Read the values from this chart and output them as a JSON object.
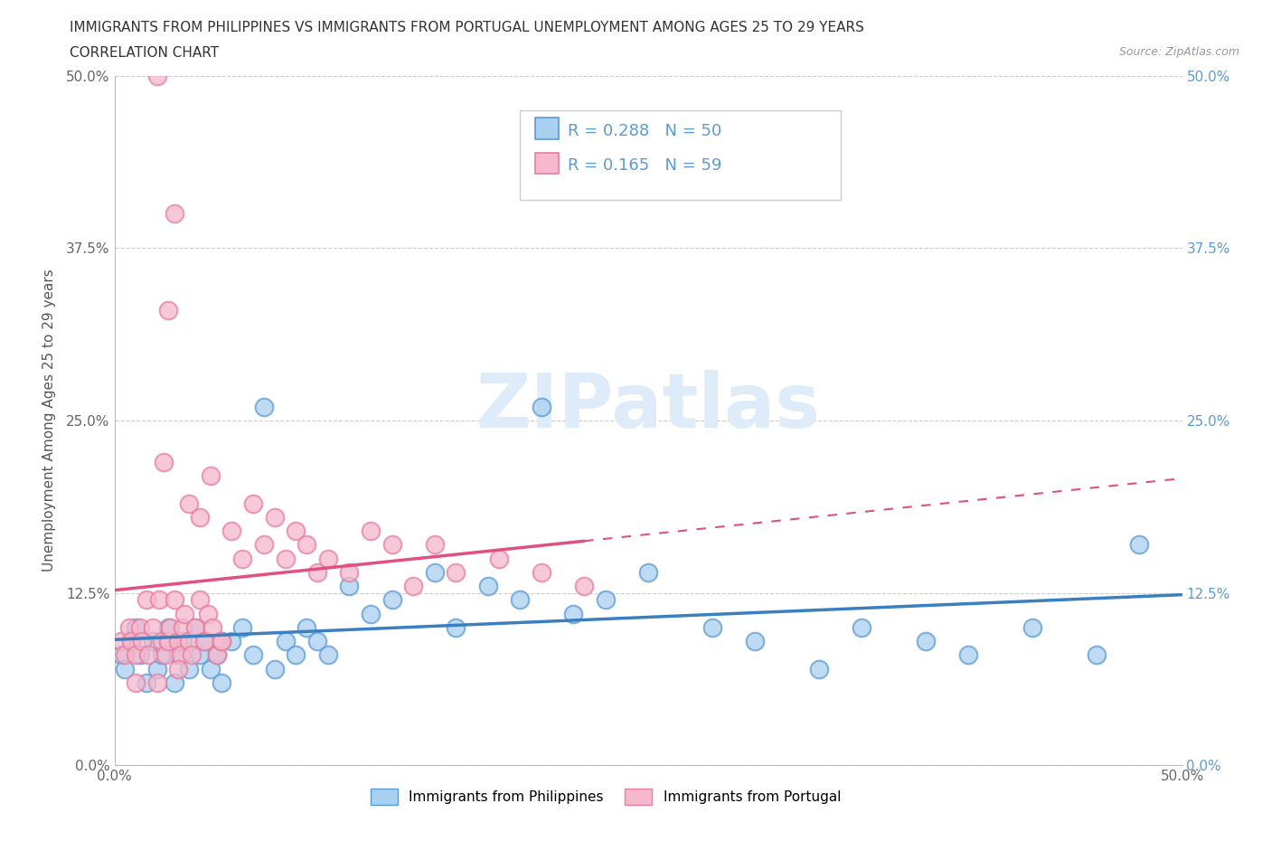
{
  "title_line1": "IMMIGRANTS FROM PHILIPPINES VS IMMIGRANTS FROM PORTUGAL UNEMPLOYMENT AMONG AGES 25 TO 29 YEARS",
  "title_line2": "CORRELATION CHART",
  "source_text": "Source: ZipAtlas.com",
  "ylabel": "Unemployment Among Ages 25 to 29 years",
  "xlim": [
    0.0,
    0.5
  ],
  "ylim": [
    0.0,
    0.5
  ],
  "ytick_values": [
    0.0,
    0.125,
    0.25,
    0.375,
    0.5
  ],
  "ytick_labels": [
    "0.0%",
    "12.5%",
    "25.0%",
    "37.5%",
    "50.0%"
  ],
  "xtick_values": [
    0.0,
    0.5
  ],
  "xtick_labels": [
    "0.0%",
    "50.0%"
  ],
  "color_phil_fill": "#A8D0F0",
  "color_phil_edge": "#5B9BD5",
  "color_port_fill": "#F5B8CC",
  "color_port_edge": "#E87DA0",
  "color_phil_line": "#3A7FBF",
  "color_port_line": "#E05080",
  "R_philippines": 0.288,
  "N_philippines": 50,
  "R_portugal": 0.165,
  "N_portugal": 59,
  "legend_label_philippines": "Immigrants from Philippines",
  "legend_label_portugal": "Immigrants from Portugal",
  "watermark": "ZIPatlas",
  "grid_color": "#CCCCCC",
  "background_color": "#FFFFFF",
  "legend_text_color": "#5B9BD5",
  "title_color": "#333333",
  "source_color": "#999999",
  "right_tick_color": "#5B9BD5",
  "phil_x": [
    0.003,
    0.005,
    0.008,
    0.01,
    0.012,
    0.015,
    0.018,
    0.02,
    0.022,
    0.025,
    0.028,
    0.03,
    0.032,
    0.035,
    0.038,
    0.04,
    0.042,
    0.045,
    0.048,
    0.05,
    0.055,
    0.06,
    0.065,
    0.07,
    0.075,
    0.08,
    0.085,
    0.09,
    0.095,
    0.1,
    0.11,
    0.12,
    0.13,
    0.15,
    0.16,
    0.175,
    0.19,
    0.2,
    0.215,
    0.23,
    0.25,
    0.28,
    0.3,
    0.33,
    0.35,
    0.38,
    0.4,
    0.43,
    0.46,
    0.48
  ],
  "phil_y": [
    0.08,
    0.07,
    0.09,
    0.1,
    0.08,
    0.06,
    0.09,
    0.07,
    0.08,
    0.1,
    0.06,
    0.08,
    0.09,
    0.07,
    0.1,
    0.08,
    0.09,
    0.07,
    0.08,
    0.06,
    0.09,
    0.1,
    0.08,
    0.26,
    0.07,
    0.09,
    0.08,
    0.1,
    0.09,
    0.08,
    0.13,
    0.11,
    0.12,
    0.14,
    0.1,
    0.13,
    0.12,
    0.26,
    0.11,
    0.12,
    0.14,
    0.1,
    0.09,
    0.07,
    0.1,
    0.09,
    0.08,
    0.1,
    0.08,
    0.16
  ],
  "port_x": [
    0.003,
    0.005,
    0.007,
    0.008,
    0.01,
    0.012,
    0.013,
    0.015,
    0.016,
    0.018,
    0.02,
    0.021,
    0.022,
    0.023,
    0.024,
    0.025,
    0.026,
    0.028,
    0.03,
    0.031,
    0.032,
    0.033,
    0.035,
    0.036,
    0.038,
    0.04,
    0.042,
    0.044,
    0.046,
    0.048,
    0.05,
    0.055,
    0.06,
    0.065,
    0.07,
    0.075,
    0.08,
    0.085,
    0.09,
    0.095,
    0.1,
    0.11,
    0.12,
    0.13,
    0.14,
    0.15,
    0.16,
    0.18,
    0.2,
    0.22,
    0.025,
    0.035,
    0.045,
    0.028,
    0.04,
    0.05,
    0.03,
    0.02,
    0.01
  ],
  "port_y": [
    0.09,
    0.08,
    0.1,
    0.09,
    0.08,
    0.1,
    0.09,
    0.12,
    0.08,
    0.1,
    0.5,
    0.12,
    0.09,
    0.22,
    0.08,
    0.09,
    0.1,
    0.12,
    0.09,
    0.08,
    0.1,
    0.11,
    0.09,
    0.08,
    0.1,
    0.12,
    0.09,
    0.11,
    0.1,
    0.08,
    0.09,
    0.17,
    0.15,
    0.19,
    0.16,
    0.18,
    0.15,
    0.17,
    0.16,
    0.14,
    0.15,
    0.14,
    0.17,
    0.16,
    0.13,
    0.16,
    0.14,
    0.15,
    0.14,
    0.13,
    0.33,
    0.19,
    0.21,
    0.4,
    0.18,
    0.09,
    0.07,
    0.06,
    0.06
  ]
}
